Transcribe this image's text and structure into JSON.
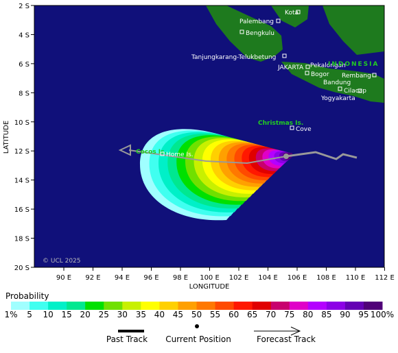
{
  "map": {
    "x_axis": {
      "label": "LONGITUDE",
      "ticks": [
        {
          "value": 90,
          "label": "90 E"
        },
        {
          "value": 92,
          "label": "92 E"
        },
        {
          "value": 94,
          "label": "94 E"
        },
        {
          "value": 96,
          "label": "96 E"
        },
        {
          "value": 98,
          "label": "98 E"
        },
        {
          "value": 100,
          "label": "100 E"
        },
        {
          "value": 102,
          "label": "102 E"
        },
        {
          "value": 104,
          "label": "104 E"
        },
        {
          "value": 106,
          "label": "106 E"
        },
        {
          "value": 108,
          "label": "108 E"
        },
        {
          "value": 110,
          "label": "110 E"
        },
        {
          "value": 112,
          "label": "112 E"
        }
      ]
    },
    "y_axis": {
      "label": "LATITUDE",
      "ticks": [
        {
          "value": 2,
          "label": "2 S"
        },
        {
          "value": 4,
          "label": "4 S"
        },
        {
          "value": 6,
          "label": "6 S"
        },
        {
          "value": 8,
          "label": "8 S"
        },
        {
          "value": 10,
          "label": "10 S"
        },
        {
          "value": 12,
          "label": "12 S"
        },
        {
          "value": 14,
          "label": "14 S"
        },
        {
          "value": 16,
          "label": "16 S"
        },
        {
          "value": 18,
          "label": "18 S"
        },
        {
          "value": 20,
          "label": "20 S"
        }
      ]
    },
    "places": [
      "Kota",
      "Palembang",
      "Bengkulu",
      "Tanjungkarang-Telukbetung",
      "JAKARTA",
      "Pekalongan",
      "Bogor",
      "Bandung",
      "Rembang",
      "Cilacap",
      "Yogyakarta",
      "INDONESIA",
      "Christmas Is.",
      "Cove",
      "Cocos Is.",
      "Home Is."
    ],
    "copyright": "© UCL 2025",
    "legend": {
      "title": "Probability",
      "colors": [
        "#a0ffff",
        "#40fff0",
        "#00f0c8",
        "#00e890",
        "#00e000",
        "#70e000",
        "#c8f000",
        "#ffff00",
        "#ffd000",
        "#ffa000",
        "#ff7800",
        "#ff4a00",
        "#ff1800",
        "#e00000",
        "#c8006e",
        "#e000c8",
        "#b400ff",
        "#8c00e6",
        "#6400b4",
        "#500078"
      ],
      "labels": [
        "1%",
        "5",
        "10",
        "15",
        "20",
        "25",
        "30",
        "35",
        "40",
        "45",
        "50",
        "55",
        "60",
        "65",
        "70",
        "75",
        "80",
        "85",
        "90",
        "95",
        "100%"
      ]
    },
    "key": {
      "past": "Past Track",
      "current": "Current Position",
      "forecast": "Forecast Track"
    }
  }
}
